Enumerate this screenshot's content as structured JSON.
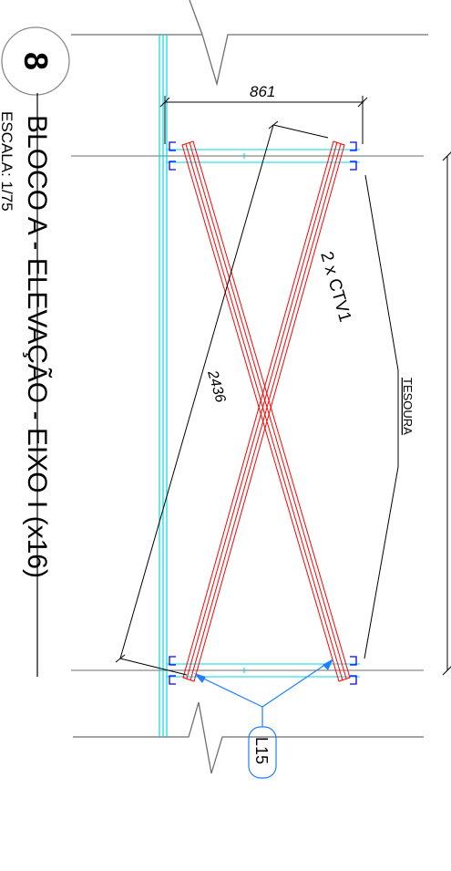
{
  "detail": {
    "number": "8",
    "title": "BLOCO A - ELEVAÇÃO - EIXO I (x16)",
    "scale": "ESCALA: 1/75"
  },
  "dimensions": {
    "top_width": "861",
    "diagonal_length": "2436"
  },
  "labels": {
    "member": "2 x CTV1",
    "truss": "TESOURA",
    "part_tag": "L15"
  },
  "colors": {
    "bracing": "#ff0000",
    "column": "#00d8e0",
    "connection": "#0000ff",
    "leader_blue": "#1e7fff",
    "axis": "#6e6e6e",
    "ink": "#000000"
  }
}
